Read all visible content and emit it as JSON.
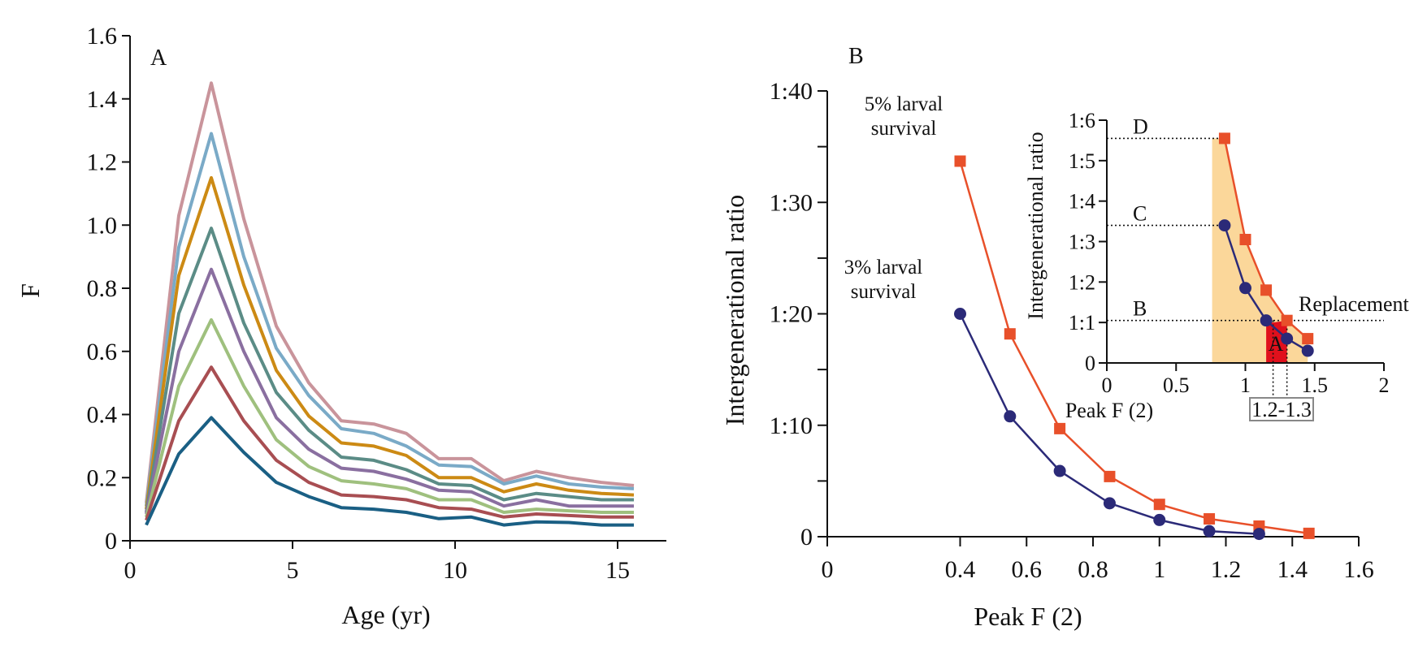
{
  "chart_data": [
    {
      "type": "line",
      "panel_label": "A",
      "xlabel": "Age (yr)",
      "ylabel": "F",
      "xlim": [
        0,
        16.5
      ],
      "ylim": [
        0,
        1.6
      ],
      "xticks": [
        "0",
        "5",
        "10",
        "15"
      ],
      "yticks": [
        "0",
        "0.2",
        "0.4",
        "0.6",
        "0.8",
        "1.0",
        "1.2",
        "1.4",
        "1.6"
      ],
      "x": [
        0.5,
        1.5,
        2.5,
        3.5,
        4.5,
        5.5,
        6.5,
        7.5,
        8.5,
        9.5,
        10.5,
        11.5,
        12.5,
        13.5,
        14.5,
        15.5
      ],
      "series": [
        {
          "color": "#c9949b",
          "values": [
            0.12,
            1.03,
            1.45,
            1.02,
            0.68,
            0.5,
            0.38,
            0.37,
            0.34,
            0.26,
            0.26,
            0.19,
            0.22,
            0.2,
            0.185,
            0.175
          ]
        },
        {
          "color": "#7aaac7",
          "values": [
            0.11,
            0.93,
            1.29,
            0.9,
            0.61,
            0.46,
            0.355,
            0.34,
            0.3,
            0.24,
            0.235,
            0.18,
            0.205,
            0.18,
            0.17,
            0.165
          ]
        },
        {
          "color": "#cc8a14",
          "values": [
            0.1,
            0.84,
            1.15,
            0.81,
            0.54,
            0.395,
            0.31,
            0.3,
            0.27,
            0.2,
            0.2,
            0.155,
            0.18,
            0.16,
            0.15,
            0.145
          ]
        },
        {
          "color": "#5b8c86",
          "values": [
            0.09,
            0.72,
            0.99,
            0.69,
            0.47,
            0.35,
            0.265,
            0.255,
            0.225,
            0.18,
            0.175,
            0.13,
            0.15,
            0.14,
            0.13,
            0.13
          ]
        },
        {
          "color": "#8a6fa0",
          "values": [
            0.085,
            0.6,
            0.86,
            0.6,
            0.39,
            0.29,
            0.23,
            0.22,
            0.195,
            0.16,
            0.155,
            0.11,
            0.13,
            0.11,
            0.11,
            0.11
          ]
        },
        {
          "color": "#9fc07e",
          "values": [
            0.075,
            0.49,
            0.7,
            0.49,
            0.32,
            0.235,
            0.19,
            0.18,
            0.165,
            0.13,
            0.13,
            0.09,
            0.1,
            0.095,
            0.09,
            0.09
          ]
        },
        {
          "color": "#a84e52",
          "values": [
            0.065,
            0.38,
            0.55,
            0.38,
            0.255,
            0.185,
            0.145,
            0.14,
            0.13,
            0.105,
            0.1,
            0.075,
            0.085,
            0.08,
            0.075,
            0.075
          ]
        },
        {
          "color": "#1a5f84",
          "values": [
            0.05,
            0.275,
            0.39,
            0.28,
            0.185,
            0.14,
            0.105,
            0.1,
            0.09,
            0.07,
            0.075,
            0.05,
            0.06,
            0.058,
            0.05,
            0.05
          ]
        }
      ]
    },
    {
      "type": "line",
      "panel_label": "B",
      "xlabel": "Peak F (2)",
      "ylabel": "Intergenerational ratio",
      "xlim": [
        0,
        1.6
      ],
      "ylim": [
        0,
        40
      ],
      "xticks": [
        "0",
        "0.4",
        "0.6",
        "0.8",
        "1",
        "1.2",
        "1.4",
        "1.6"
      ],
      "xtick_values": [
        0,
        0.4,
        0.6,
        0.8,
        1.0,
        1.2,
        1.4,
        1.6
      ],
      "yticks": [
        "0",
        "1:10",
        "1:20",
        "1:30",
        "1:40"
      ],
      "ytick_values": [
        0,
        10,
        20,
        30,
        40
      ],
      "series": [
        {
          "label": "5% larval survival",
          "color": "#e8502a",
          "marker": "square",
          "x": [
            0.4,
            0.55,
            0.7,
            0.85,
            1.0,
            1.15,
            1.3,
            1.45
          ],
          "values": [
            33.7,
            18.2,
            9.7,
            5.4,
            2.9,
            1.6,
            0.95,
            0.3
          ]
        },
        {
          "label": "3% larval survival",
          "color": "#2b2a78",
          "marker": "circle",
          "x": [
            0.4,
            0.55,
            0.7,
            0.85,
            1.0,
            1.15,
            1.3
          ],
          "values": [
            20.0,
            10.8,
            5.9,
            3.0,
            1.5,
            0.5,
            0.25
          ]
        }
      ],
      "annotations": {
        "label_5": [
          "5% larval",
          "survival"
        ],
        "label_3": [
          "3% larval",
          "survival"
        ]
      },
      "inset": {
        "xlabel": "Peak F (2)",
        "ylabel": "Intergenerational ratio",
        "xlim": [
          0,
          2
        ],
        "ylim": [
          0,
          6
        ],
        "xticks": [
          "0",
          "0.5",
          "1",
          "1.5",
          "2"
        ],
        "xtick_values": [
          0,
          0.5,
          1,
          1.5,
          2
        ],
        "yticks": [
          "0",
          "1:1",
          "1:2",
          "1:3",
          "1:4",
          "1:5",
          "1:6"
        ],
        "ytick_values": [
          0,
          1,
          2,
          3,
          4,
          5,
          6
        ],
        "series_5": {
          "color": "#e8502a",
          "x": [
            0.85,
            1.0,
            1.15,
            1.3,
            1.45
          ],
          "values": [
            5.55,
            3.05,
            1.8,
            1.05,
            0.6
          ]
        },
        "series_3": {
          "color": "#2b2a78",
          "x": [
            0.85,
            1.0,
            1.15,
            1.3,
            1.45
          ],
          "values": [
            3.4,
            1.85,
            1.05,
            0.6,
            0.3
          ]
        },
        "ref_lines": [
          {
            "label": "D",
            "y": 5.55,
            "x_end": 0.85
          },
          {
            "label": "C",
            "y": 3.4,
            "x_end": 0.85
          },
          {
            "label": "B",
            "y": 1.05,
            "x_end": 2.0
          }
        ],
        "replacement_label": "Replacement",
        "region_A_label": "A",
        "range_label": "1.2-1.3",
        "range_x": [
          1.2,
          1.3
        ],
        "shade_color": "#fbd79a",
        "region_color": "#e0101c"
      }
    }
  ]
}
